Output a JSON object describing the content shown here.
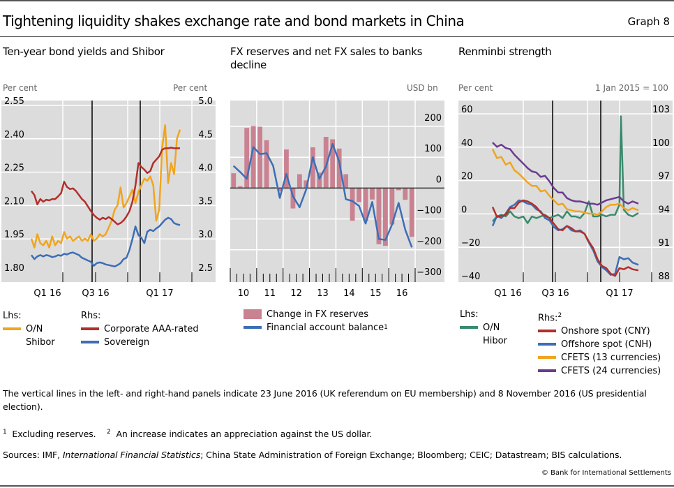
{
  "header": {
    "title": "Tightening liquidity shakes exchange rate and bond markets in China",
    "graph_number": "Graph 8"
  },
  "chart_data": [
    {
      "type": "line",
      "title": "Ten-year bond yields and Shibor",
      "ylabel_left": "Per cent",
      "ylabel_right": "Per cent",
      "x_ticks": [
        "Q1 16",
        "Q3 16",
        "Q1 17"
      ],
      "x_range": [
        "2015-10",
        "2017-04"
      ],
      "ylim_left": [
        1.8,
        2.55
      ],
      "yticks_left": [
        "2.55",
        "2.40",
        "2.25",
        "2.10",
        "1.95",
        "1.80"
      ],
      "ylim_right": [
        2.5,
        5.0
      ],
      "yticks_right": [
        "5.0",
        "4.5",
        "4.0",
        "3.5",
        "3.0",
        "2.5"
      ],
      "vertical_lines": [
        "2016-06-23",
        "2016-11-08"
      ],
      "grid": true,
      "legend": {
        "lhs_label": "Lhs:",
        "rhs_label": "Rhs:",
        "lhs": [
          {
            "name": "O/N Shibor",
            "color": "#f0a51e"
          }
        ],
        "rhs": [
          {
            "name": "Corporate AAA-rated",
            "color": "#b22f2b"
          },
          {
            "name": "Sovereign",
            "color": "#3d6eb5"
          }
        ]
      },
      "series": [
        {
          "name": "O/N Shibor",
          "axis": "left",
          "color": "#f0a51e",
          "x": [
            0.0,
            0.02,
            0.04,
            0.06,
            0.08,
            0.1,
            0.12,
            0.14,
            0.16,
            0.18,
            0.2,
            0.22,
            0.24,
            0.26,
            0.28,
            0.3,
            0.32,
            0.34,
            0.36,
            0.38,
            0.4,
            0.42,
            0.44,
            0.46,
            0.48,
            0.5,
            0.52,
            0.54,
            0.56,
            0.58,
            0.6,
            0.62,
            0.64,
            0.66,
            0.68,
            0.7,
            0.72,
            0.74,
            0.76,
            0.78,
            0.8,
            0.82,
            0.84,
            0.86,
            0.88,
            0.9,
            0.92,
            0.94,
            0.96,
            0.98,
            1.0
          ],
          "y": [
            1.97,
            1.93,
            1.99,
            1.95,
            1.94,
            1.96,
            1.93,
            1.98,
            1.94,
            1.96,
            1.95,
            2.0,
            1.97,
            1.98,
            1.96,
            1.97,
            1.98,
            1.96,
            1.97,
            1.96,
            1.99,
            1.96,
            1.97,
            1.99,
            1.98,
            1.99,
            2.02,
            2.05,
            2.1,
            2.12,
            2.2,
            2.11,
            2.13,
            2.16,
            2.19,
            2.13,
            2.18,
            2.21,
            2.24,
            2.23,
            2.25,
            2.21,
            2.05,
            2.1,
            2.38,
            2.48,
            2.22,
            2.31,
            2.26,
            2.42,
            2.46
          ]
        },
        {
          "name": "Corporate AAA-rated",
          "axis": "right",
          "color": "#b22f2b",
          "x": [
            0.0,
            0.02,
            0.04,
            0.06,
            0.08,
            0.1,
            0.12,
            0.14,
            0.16,
            0.18,
            0.2,
            0.22,
            0.24,
            0.26,
            0.28,
            0.3,
            0.32,
            0.34,
            0.36,
            0.38,
            0.4,
            0.42,
            0.44,
            0.46,
            0.48,
            0.5,
            0.52,
            0.54,
            0.56,
            0.58,
            0.6,
            0.62,
            0.64,
            0.66,
            0.68,
            0.7,
            0.72,
            0.74,
            0.76,
            0.78,
            0.8,
            0.82,
            0.84,
            0.86,
            0.88,
            0.9,
            0.92,
            0.94,
            0.96,
            0.98,
            1.0
          ],
          "y": [
            3.78,
            3.72,
            3.58,
            3.66,
            3.62,
            3.65,
            3.64,
            3.66,
            3.66,
            3.7,
            3.75,
            3.92,
            3.84,
            3.81,
            3.82,
            3.78,
            3.72,
            3.66,
            3.62,
            3.55,
            3.48,
            3.42,
            3.38,
            3.35,
            3.38,
            3.36,
            3.39,
            3.36,
            3.32,
            3.28,
            3.3,
            3.34,
            3.4,
            3.48,
            3.62,
            3.86,
            4.2,
            4.14,
            4.1,
            4.05,
            4.08,
            4.2,
            4.25,
            4.3,
            4.4,
            4.42,
            4.42,
            4.43,
            4.42,
            4.42,
            4.42
          ]
        },
        {
          "name": "Sovereign",
          "axis": "right",
          "color": "#3d6eb5",
          "x": [
            0.0,
            0.02,
            0.04,
            0.06,
            0.08,
            0.1,
            0.12,
            0.14,
            0.16,
            0.18,
            0.2,
            0.22,
            0.24,
            0.26,
            0.28,
            0.3,
            0.32,
            0.34,
            0.36,
            0.38,
            0.4,
            0.42,
            0.44,
            0.46,
            0.48,
            0.5,
            0.52,
            0.54,
            0.56,
            0.58,
            0.6,
            0.62,
            0.64,
            0.66,
            0.68,
            0.7,
            0.72,
            0.74,
            0.76,
            0.78,
            0.8,
            0.82,
            0.84,
            0.86,
            0.88,
            0.9,
            0.92,
            0.94,
            0.96,
            0.98,
            1.0
          ],
          "y": [
            2.82,
            2.76,
            2.8,
            2.82,
            2.8,
            2.82,
            2.81,
            2.79,
            2.8,
            2.82,
            2.81,
            2.84,
            2.83,
            2.85,
            2.86,
            2.84,
            2.82,
            2.78,
            2.76,
            2.74,
            2.72,
            2.66,
            2.7,
            2.71,
            2.7,
            2.68,
            2.67,
            2.66,
            2.65,
            2.67,
            2.7,
            2.76,
            2.78,
            2.9,
            3.06,
            3.25,
            3.12,
            3.08,
            3.0,
            3.17,
            3.2,
            3.18,
            3.22,
            3.25,
            3.3,
            3.35,
            3.38,
            3.36,
            3.3,
            3.28,
            3.27
          ]
        }
      ]
    },
    {
      "type": "bar+line",
      "title": "FX reserves and net FX sales to banks decline",
      "ylabel_right": "USD bn",
      "x_ticks": [
        "10",
        "11",
        "12",
        "13",
        "14",
        "15",
        "16"
      ],
      "ylim": [
        -300,
        200
      ],
      "yticks": [
        "200",
        "100",
        "0",
        "−100",
        "−200",
        "−300"
      ],
      "grid": true,
      "quarters": [
        "10Q1",
        "10Q2",
        "10Q3",
        "10Q4",
        "11Q1",
        "11Q2",
        "11Q3",
        "11Q4",
        "12Q1",
        "12Q2",
        "12Q3",
        "12Q4",
        "13Q1",
        "13Q2",
        "13Q3",
        "13Q4",
        "14Q1",
        "14Q2",
        "14Q3",
        "14Q4",
        "15Q1",
        "15Q2",
        "15Q3",
        "15Q4",
        "16Q1",
        "16Q2",
        "16Q3",
        "16Q4"
      ],
      "legend": [
        {
          "name": "Change in FX reserves",
          "kind": "bar",
          "color": "#c98291"
        },
        {
          "name": "Financial account balance",
          "footnote": "1",
          "kind": "line",
          "color": "#3d6eb5"
        }
      ],
      "series": [
        {
          "name": "Change in FX reserves",
          "kind": "bar",
          "color": "#c98291",
          "values": [
            48,
            6,
            195,
            201,
            199,
            155,
            3,
            -10,
            125,
            -66,
            45,
            25,
            132,
            50,
            166,
            158,
            128,
            45,
            -106,
            -45,
            -107,
            -37,
            -182,
            -187,
            -118,
            -7,
            -38,
            -158
          ]
        },
        {
          "name": "Financial account balance",
          "kind": "line",
          "color": "#3d6eb5",
          "values": [
            72,
            52,
            30,
            133,
            110,
            113,
            72,
            -32,
            46,
            -27,
            -62,
            -5,
            100,
            30,
            70,
            143,
            86,
            -36,
            -42,
            -58,
            -115,
            -45,
            -165,
            -168,
            -118,
            -48,
            -135,
            -192
          ]
        }
      ]
    },
    {
      "type": "line",
      "title": "Renminbi strength",
      "ylabel_left": "Per cent",
      "ylabel_right": "1 Jan 2015 = 100",
      "x_ticks": [
        "Q1 16",
        "Q3 16",
        "Q1 17"
      ],
      "ylim_left": [
        -40,
        60
      ],
      "yticks_left": [
        "60",
        "40",
        "20",
        "0",
        "−20",
        "−40"
      ],
      "ylim_right": [
        88,
        103
      ],
      "yticks_right": [
        "103",
        "100",
        "97",
        "94",
        "91",
        "88"
      ],
      "vertical_lines": [
        "2016-06-23",
        "2016-11-08"
      ],
      "grid": true,
      "legend": {
        "lhs_label": "Lhs:",
        "rhs_label": "Rhs:",
        "rhs_footnote": "2",
        "lhs": [
          {
            "name": "O/N Hibor",
            "color": "#3a8a6d"
          }
        ],
        "rhs": [
          {
            "name": "Onshore spot (CNY)",
            "color": "#b22f2b"
          },
          {
            "name": "Offshore spot (CNH)",
            "color": "#3d6eb5"
          },
          {
            "name": "CFETS (13 currencies)",
            "color": "#f0a51e"
          },
          {
            "name": "CFETS (24 currencies)",
            "color": "#6a3b8f"
          }
        ]
      },
      "series": [
        {
          "name": "O/N Hibor",
          "axis": "left",
          "color": "#3a8a6d",
          "x": [
            0.0,
            0.03,
            0.06,
            0.09,
            0.12,
            0.15,
            0.18,
            0.21,
            0.24,
            0.27,
            0.3,
            0.33,
            0.36,
            0.39,
            0.42,
            0.45,
            0.48,
            0.51,
            0.54,
            0.57,
            0.6,
            0.63,
            0.66,
            0.69,
            0.72,
            0.75,
            0.78,
            0.81,
            0.84,
            0.87,
            0.88,
            0.9,
            0.93,
            0.96,
            1.0
          ],
          "y": [
            -2,
            1,
            2,
            1,
            4,
            1,
            0,
            1,
            -3,
            1,
            0,
            1,
            2,
            0,
            1,
            2,
            0,
            4,
            1,
            1,
            0,
            3,
            10,
            1,
            1,
            2,
            1,
            2,
            2,
            8,
            61,
            5,
            2,
            1,
            3
          ]
        },
        {
          "name": "Onshore spot (CNY)",
          "axis": "right",
          "color": "#b22f2b",
          "x": [
            0.0,
            0.03,
            0.06,
            0.09,
            0.12,
            0.15,
            0.18,
            0.21,
            0.24,
            0.27,
            0.3,
            0.33,
            0.36,
            0.39,
            0.42,
            0.45,
            0.48,
            0.51,
            0.54,
            0.57,
            0.6,
            0.63,
            0.66,
            0.69,
            0.72,
            0.75,
            0.78,
            0.81,
            0.84,
            0.87,
            0.9,
            0.93,
            0.96,
            1.0
          ],
          "y": [
            95.0,
            94.1,
            94.2,
            94.3,
            94.9,
            94.9,
            95.4,
            95.6,
            95.5,
            95.3,
            95.0,
            94.5,
            94.2,
            94.0,
            93.5,
            93.0,
            92.9,
            93.3,
            93.1,
            92.8,
            92.8,
            92.6,
            91.9,
            91.3,
            90.3,
            89.7,
            89.5,
            89.0,
            88.8,
            89.5,
            89.4,
            89.6,
            89.4,
            89.3
          ]
        },
        {
          "name": "Offshore spot (CNH)",
          "axis": "right",
          "color": "#3d6eb5",
          "x": [
            0.0,
            0.03,
            0.06,
            0.09,
            0.12,
            0.15,
            0.18,
            0.21,
            0.24,
            0.27,
            0.3,
            0.33,
            0.36,
            0.39,
            0.42,
            0.45,
            0.48,
            0.51,
            0.54,
            0.57,
            0.6,
            0.63,
            0.66,
            0.69,
            0.72,
            0.75,
            0.78,
            0.81,
            0.84,
            0.87,
            0.9,
            0.93,
            0.96,
            1.0
          ],
          "y": [
            93.3,
            94.2,
            94.0,
            94.4,
            95.0,
            95.2,
            95.6,
            95.5,
            95.3,
            95.2,
            94.8,
            94.6,
            94.0,
            93.8,
            93.2,
            92.9,
            93.0,
            93.3,
            92.9,
            92.8,
            92.9,
            92.6,
            91.8,
            91.1,
            90.1,
            89.6,
            89.3,
            88.9,
            89.0,
            90.5,
            90.3,
            90.4,
            90.0,
            89.8
          ]
        },
        {
          "name": "CFETS (13 currencies)",
          "axis": "right",
          "color": "#f0a51e",
          "x": [
            0.0,
            0.03,
            0.06,
            0.09,
            0.12,
            0.15,
            0.18,
            0.21,
            0.24,
            0.27,
            0.3,
            0.33,
            0.36,
            0.39,
            0.42,
            0.45,
            0.48,
            0.51,
            0.54,
            0.57,
            0.6,
            0.63,
            0.66,
            0.69,
            0.72,
            0.75,
            0.78,
            0.81,
            0.84,
            0.87,
            0.9,
            0.93,
            0.96,
            1.0
          ],
          "y": [
            100.2,
            99.4,
            99.5,
            98.8,
            99.0,
            98.3,
            98.0,
            97.6,
            97.2,
            96.9,
            96.9,
            96.4,
            96.5,
            96.0,
            95.6,
            95.2,
            95.3,
            94.8,
            94.7,
            94.6,
            94.6,
            94.5,
            94.4,
            94.4,
            94.3,
            94.6,
            95.0,
            95.2,
            95.2,
            95.3,
            94.9,
            94.7,
            94.9,
            94.7
          ]
        },
        {
          "name": "CFETS (24 currencies)",
          "axis": "right",
          "color": "#6a3b8f",
          "x": [
            0.0,
            0.03,
            0.06,
            0.09,
            0.12,
            0.15,
            0.18,
            0.21,
            0.24,
            0.27,
            0.3,
            0.33,
            0.36,
            0.39,
            0.42,
            0.45,
            0.48,
            0.51,
            0.54,
            0.57,
            0.6,
            0.63,
            0.66,
            0.69,
            0.72,
            0.75,
            0.78,
            0.81,
            0.84,
            0.87,
            0.9,
            0.93,
            0.96,
            1.0
          ],
          "y": [
            100.8,
            100.4,
            100.6,
            100.3,
            100.2,
            99.7,
            99.3,
            98.9,
            98.5,
            98.2,
            98.1,
            97.7,
            97.8,
            97.3,
            96.7,
            96.3,
            96.3,
            95.8,
            95.6,
            95.5,
            95.5,
            95.4,
            95.3,
            95.3,
            95.2,
            95.4,
            95.6,
            95.7,
            95.8,
            95.9,
            95.5,
            95.3,
            95.5,
            95.3
          ]
        }
      ]
    }
  ],
  "notes": {
    "vertical_lines_note": "The vertical lines in the left- and right-hand panels indicate 23 June 2016 (UK referendum on EU membership) and 8 November 2016 (US presidential election).",
    "footnote1_mark": "1",
    "footnote1_text": "Excluding reserves.",
    "footnote2_mark": "2",
    "footnote2_text": "An increase indicates an appreciation against the US dollar.",
    "sources_prefix": "Sources: IMF, ",
    "sources_italic": "International Financial Statistics",
    "sources_suffix": "; China State Administration of Foreign Exchange; Bloomberg; CEIC; Datastream; BIS calculations.",
    "copyright": "© Bank for International Settlements"
  }
}
